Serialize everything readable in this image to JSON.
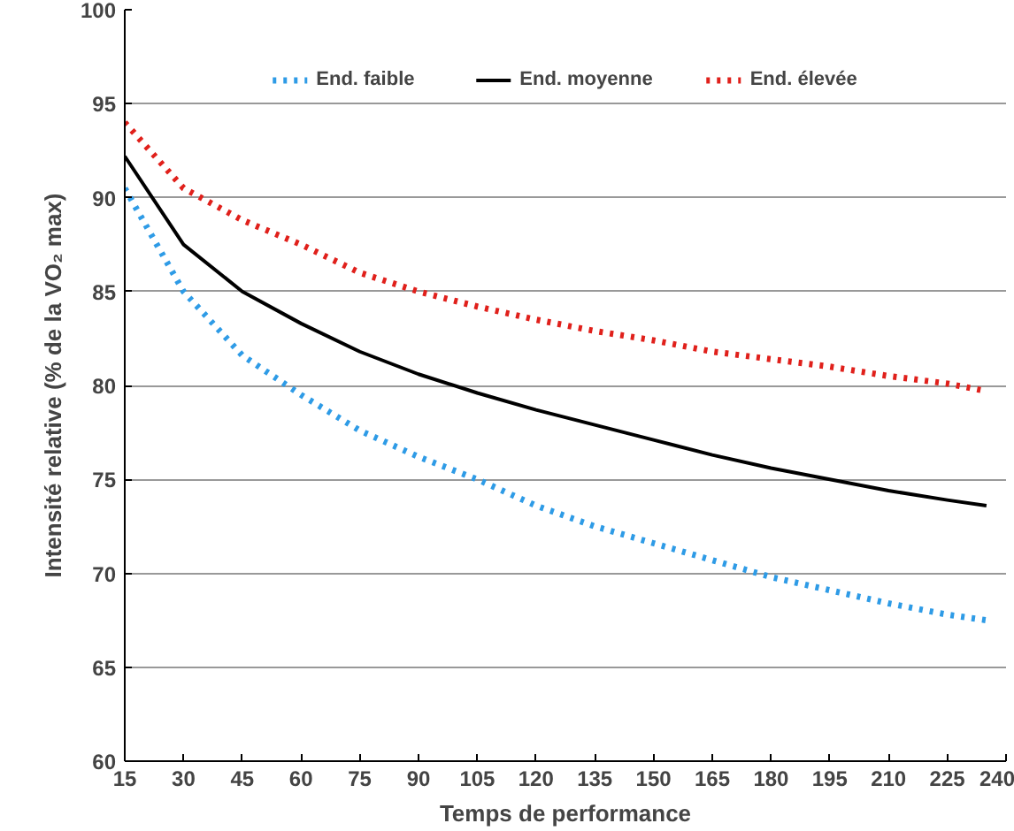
{
  "chart_data": {
    "type": "line",
    "xlabel": "Temps de performance",
    "ylabel": "Intensité relative (% de la VO₂ max)",
    "x": [
      15,
      30,
      45,
      60,
      75,
      90,
      105,
      120,
      135,
      150,
      165,
      180,
      195,
      210,
      225,
      235
    ],
    "series": [
      {
        "name": "End. faible",
        "color": "#2e9be6",
        "line_style": "dotted",
        "values": [
          90.5,
          85,
          81.6,
          79.5,
          77.6,
          76.2,
          75,
          73.6,
          72.5,
          71.6,
          70.7,
          69.8,
          69.1,
          68.4,
          67.8,
          67.5
        ]
      },
      {
        "name": "End. moyenne",
        "color": "#000000",
        "line_style": "solid",
        "values": [
          92.2,
          87.5,
          85,
          83.3,
          81.8,
          80.6,
          79.6,
          78.7,
          77.9,
          77.1,
          76.3,
          75.6,
          75,
          74.4,
          73.9,
          73.6
        ]
      },
      {
        "name": "End. élevée",
        "color": "#e0201b",
        "line_style": "dotted",
        "values": [
          94,
          90.5,
          88.8,
          87.5,
          86,
          85,
          84.2,
          83.5,
          82.9,
          82.4,
          81.8,
          81.4,
          81,
          80.5,
          80.1,
          79.7
        ]
      }
    ],
    "xlim": [
      15,
      240
    ],
    "xticks": [
      15,
      30,
      45,
      60,
      75,
      90,
      105,
      120,
      135,
      150,
      165,
      180,
      195,
      210,
      225,
      240
    ],
    "ylim": [
      60,
      100
    ],
    "yticks": [
      60,
      65,
      70,
      75,
      80,
      85,
      90,
      95,
      100
    ],
    "grid": "y",
    "legend": "top",
    "marker": "none"
  }
}
